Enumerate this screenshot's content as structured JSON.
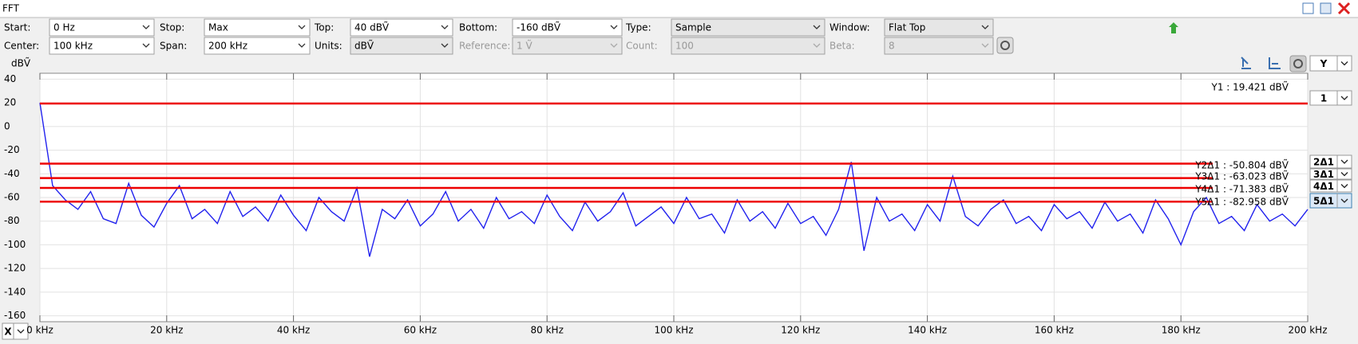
{
  "window": {
    "title": "FFT"
  },
  "toolbar": {
    "rows": [
      [
        {
          "label": "Start:",
          "value": "0 Hz",
          "enabled": true,
          "editable": true
        },
        {
          "label": "Stop:",
          "value": "Max",
          "enabled": true,
          "editable": true
        },
        {
          "label": "Top:",
          "value": "40 dBṼ",
          "enabled": true,
          "editable": true
        },
        {
          "label": "Bottom:",
          "value": "-160 dBṼ",
          "enabled": true,
          "editable": true
        },
        {
          "label": "Type:",
          "value": "Sample",
          "enabled": true,
          "editable": false
        },
        {
          "label": "Window:",
          "value": "Flat Top",
          "enabled": true,
          "editable": false
        }
      ],
      [
        {
          "label": "Center:",
          "value": "100 kHz",
          "enabled": true,
          "editable": true
        },
        {
          "label": "Span:",
          "value": "200 kHz",
          "enabled": true,
          "editable": true
        },
        {
          "label": "Units:",
          "value": "dBṼ",
          "enabled": true,
          "editable": false
        },
        {
          "label": "Reference:",
          "value": "1 Ṽ",
          "enabled": false,
          "editable": true
        },
        {
          "label": "Count:",
          "value": "100",
          "enabled": false,
          "editable": true
        },
        {
          "label": "Beta:",
          "value": "8",
          "enabled": false,
          "editable": true
        }
      ]
    ]
  },
  "side_panel": {
    "axis_selector": "Y",
    "cursor_selectors": [
      "1",
      "2Δ1",
      "3Δ1",
      "4Δ1",
      "5Δ1"
    ],
    "selected_cursor": 4,
    "x_selector": "X"
  },
  "chart_data": {
    "type": "line",
    "ylabel": "dBṼ",
    "color": "#2222ee",
    "grid": true,
    "xlim": [
      0,
      200
    ],
    "ylim": [
      -165,
      45
    ],
    "xticks": [
      {
        "value": 0,
        "label": "0 kHz"
      },
      {
        "value": 20,
        "label": "20 kHz"
      },
      {
        "value": 40,
        "label": "40 kHz"
      },
      {
        "value": 60,
        "label": "60 kHz"
      },
      {
        "value": 80,
        "label": "80 kHz"
      },
      {
        "value": 100,
        "label": "100 kHz"
      },
      {
        "value": 120,
        "label": "120 kHz"
      },
      {
        "value": 140,
        "label": "140 kHz"
      },
      {
        "value": 160,
        "label": "160 kHz"
      },
      {
        "value": 180,
        "label": "180 kHz"
      },
      {
        "value": 200,
        "label": "200 kHz"
      }
    ],
    "yticks": [
      40,
      20,
      0,
      -20,
      -40,
      -60,
      -80,
      -100,
      -120,
      -140,
      -160
    ],
    "x": [
      0,
      2,
      4,
      6,
      8,
      10,
      12,
      14,
      16,
      18,
      20,
      22,
      24,
      26,
      28,
      30,
      32,
      34,
      36,
      38,
      40,
      42,
      44,
      46,
      48,
      50,
      52,
      54,
      56,
      58,
      60,
      62,
      64,
      66,
      68,
      70,
      72,
      74,
      76,
      78,
      80,
      82,
      84,
      86,
      88,
      90,
      92,
      94,
      96,
      98,
      100,
      102,
      104,
      106,
      108,
      110,
      112,
      114,
      116,
      118,
      120,
      122,
      124,
      126,
      128,
      130,
      132,
      134,
      136,
      138,
      140,
      142,
      144,
      146,
      148,
      150,
      152,
      154,
      156,
      158,
      160,
      162,
      164,
      166,
      168,
      170,
      172,
      174,
      176,
      178,
      180,
      182,
      184,
      186,
      188,
      190,
      192,
      194,
      196,
      198,
      200
    ],
    "values": [
      20,
      -50,
      -62,
      -70,
      -55,
      -78,
      -82,
      -48,
      -75,
      -85,
      -65,
      -50,
      -78,
      -70,
      -82,
      -55,
      -76,
      -68,
      -80,
      -58,
      -75,
      -88,
      -60,
      -72,
      -80,
      -52,
      -110,
      -70,
      -78,
      -62,
      -84,
      -74,
      -55,
      -80,
      -70,
      -86,
      -60,
      -78,
      -72,
      -82,
      -58,
      -76,
      -88,
      -64,
      -80,
      -72,
      -56,
      -84,
      -76,
      -68,
      -82,
      -60,
      -78,
      -74,
      -90,
      -62,
      -80,
      -72,
      -86,
      -65,
      -82,
      -76,
      -92,
      -70,
      -30,
      -105,
      -60,
      -80,
      -74,
      -88,
      -66,
      -80,
      -42,
      -76,
      -84,
      -70,
      -62,
      -82,
      -76,
      -88,
      -66,
      -78,
      -72,
      -86,
      -64,
      -80,
      -74,
      -90,
      -62,
      -78,
      -100,
      -72,
      -60,
      -82,
      -76,
      -88,
      -66,
      -80,
      -74,
      -84,
      -70
    ],
    "cursor_color": "#ee0000",
    "cursors": [
      {
        "label": "Y1 : 19.421 dBṼ",
        "value": 19.421
      },
      {
        "label": "Y2Δ1 : -50.804 dBṼ",
        "value": -50.804
      },
      {
        "label": "Y3Δ1 : -63.023 dBṼ",
        "value": -63.023
      },
      {
        "label": "Y4Δ1 : -71.383 dBṼ",
        "value": -71.383
      },
      {
        "label": "Y5Δ1 : -82.958 dBṼ",
        "value": -82.958
      }
    ]
  }
}
